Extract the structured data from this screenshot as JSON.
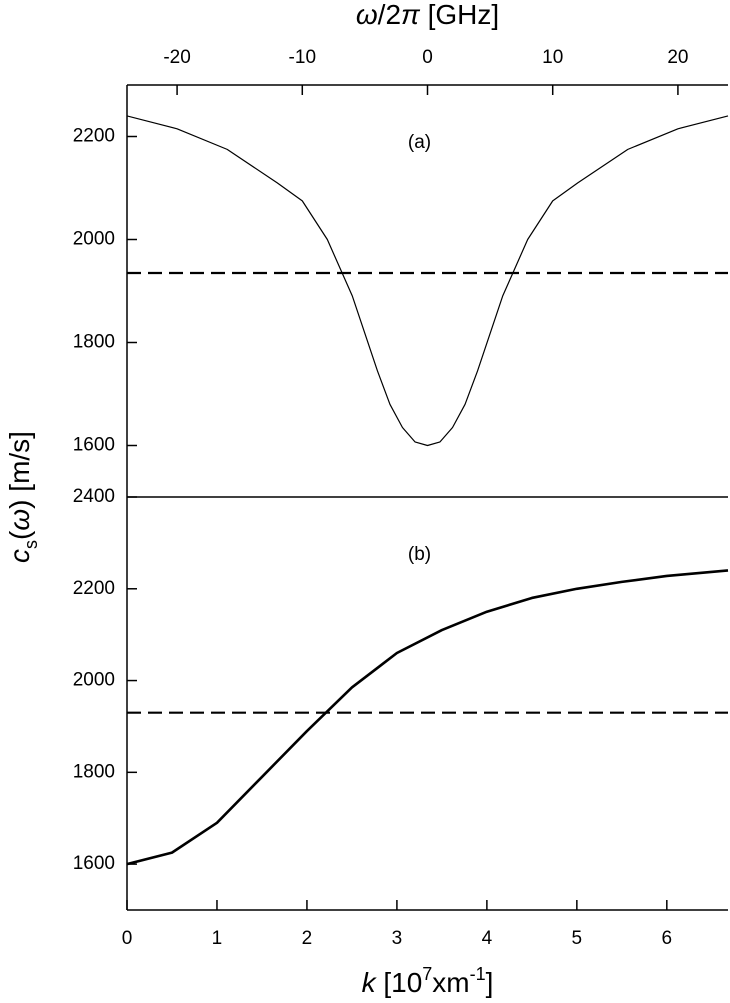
{
  "chart_data": [
    {
      "type": "line",
      "annotation": "(a)",
      "xlabel": [
        {
          "text": "ω",
          "italic": true
        },
        {
          "text": "/2"
        },
        {
          "text": "π",
          "italic": true
        },
        {
          "text": " [GHz]"
        }
      ],
      "x": [
        -24,
        -20,
        -16,
        -12,
        -10,
        -8,
        -6,
        -4,
        -3,
        -2,
        -1,
        0,
        1,
        2,
        3,
        4,
        6,
        8,
        10,
        12,
        16,
        20,
        24
      ],
      "series": [
        {
          "color": "#000000",
          "linewidth": 1.2,
          "values": [
            2240,
            2215,
            2175,
            2110,
            2075,
            2000,
            1890,
            1745,
            1680,
            1635,
            1607,
            1600,
            1607,
            1635,
            1680,
            1745,
            1890,
            2000,
            2075,
            2110,
            2175,
            2215,
            2240
          ]
        }
      ],
      "reference_lines": [
        {
          "y": 1935,
          "dashed": true
        }
      ],
      "xlim": [
        -24,
        24
      ],
      "xticks": [
        -20,
        -10,
        0,
        10,
        20
      ],
      "xaxis_position": "top",
      "ylim": [
        1500,
        2300
      ],
      "yticks": [
        1600,
        1800,
        2000,
        2200
      ]
    },
    {
      "type": "line",
      "annotation": "(b)",
      "ylabel": [
        {
          "text": "c",
          "italic": true
        },
        {
          "text": "s",
          "sub": true
        },
        {
          "text": "(",
          "dy_reset": true
        },
        {
          "text": "ω",
          "italic": true
        },
        {
          "text": ") [m/s]"
        }
      ],
      "xlabel": [
        {
          "text": "k",
          "italic": true
        },
        {
          "text": " [10"
        },
        {
          "text": "7",
          "sup": true
        },
        {
          "text": "xm",
          "dy_reset": true
        },
        {
          "text": "-1",
          "sup": true
        },
        {
          "text": "]",
          "dy_reset": true
        }
      ],
      "x": [
        0,
        0.5,
        1,
        1.5,
        2,
        2.5,
        3,
        3.5,
        4,
        4.5,
        5,
        5.5,
        6,
        6.68
      ],
      "series": [
        {
          "color": "#000000",
          "linewidth": 2.6,
          "values": [
            1600,
            1625,
            1690,
            1790,
            1890,
            1985,
            2060,
            2110,
            2150,
            2180,
            2200,
            2215,
            2228,
            2240
          ]
        }
      ],
      "reference_lines": [
        {
          "y": 1930,
          "dashed": true
        }
      ],
      "xlim": [
        0,
        6.68
      ],
      "xticks": [
        0,
        1,
        2,
        3,
        4,
        5,
        6
      ],
      "xaxis_position": "bottom",
      "ylim": [
        1500,
        2400
      ],
      "yticks": [
        1600,
        1800,
        2000,
        2200,
        2400
      ]
    }
  ]
}
